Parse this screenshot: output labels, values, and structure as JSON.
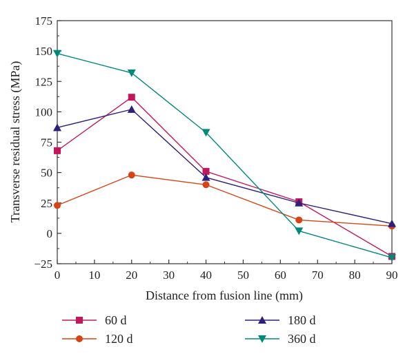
{
  "chart_data": {
    "type": "line",
    "xlabel": "Distance from fusion line (mm)",
    "ylabel": "Transverse residual stress (MPa)",
    "xlim": [
      0,
      90
    ],
    "ylim": [
      -25,
      175
    ],
    "xticks": [
      0,
      10,
      20,
      30,
      40,
      50,
      60,
      70,
      80,
      90
    ],
    "yticks": [
      -25,
      0,
      25,
      50,
      75,
      100,
      125,
      150,
      175
    ],
    "xtick_labels": [
      "0",
      "10",
      "20",
      "30",
      "40",
      "50",
      "60",
      "70",
      "80",
      "90"
    ],
    "ytick_labels": [
      "−25",
      "0",
      "25",
      "50",
      "75",
      "100",
      "125",
      "150",
      "175"
    ],
    "grid": false,
    "legend_position": "below",
    "series": [
      {
        "name": "60 d",
        "color": "#c2185b",
        "marker": "square",
        "x": [
          0,
          20,
          40,
          65,
          90
        ],
        "y": [
          68,
          112,
          51,
          26,
          -19
        ]
      },
      {
        "name": "120 d",
        "color": "#d84315",
        "marker": "circle",
        "x": [
          0,
          20,
          40,
          65,
          90
        ],
        "y": [
          23,
          48,
          40,
          11,
          6
        ]
      },
      {
        "name": "180 d",
        "color": "#2e1f7a",
        "marker": "triangle-up",
        "x": [
          0,
          20,
          40,
          65,
          90
        ],
        "y": [
          87,
          102,
          46,
          25,
          8
        ]
      },
      {
        "name": "360 d",
        "color": "#00897b",
        "marker": "triangle-down",
        "x": [
          0,
          20,
          40,
          65,
          90
        ],
        "y": [
          148,
          132,
          83,
          2,
          -20
        ]
      }
    ]
  }
}
